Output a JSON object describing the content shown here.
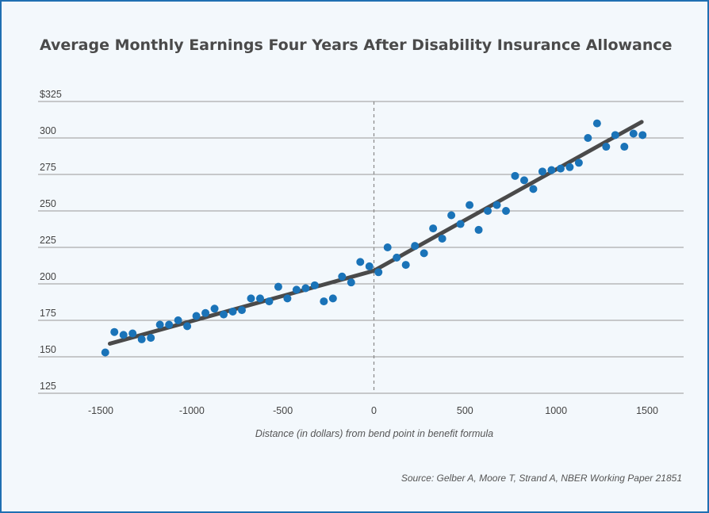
{
  "chart_data": {
    "type": "scatter",
    "title": "Average Monthly Earnings Four Years After Disability Insurance Allowance",
    "xlabel": "Distance (in dollars) from bend point in benefit formula",
    "ylabel": "",
    "source": "Source: Gelber A, Moore T, Strand A, NBER Working Paper 21851",
    "xlim": [
      -1700,
      1700
    ],
    "ylim": [
      120,
      328
    ],
    "x_ticks": [
      -1500,
      -1000,
      -500,
      0,
      500,
      1000,
      1500
    ],
    "x_tick_labels": [
      "-1500",
      "-1000",
      "-500",
      "0",
      "500",
      "1000",
      "1500"
    ],
    "y_ticks": [
      125,
      150,
      175,
      200,
      225,
      250,
      275,
      300,
      325
    ],
    "y_tick_labels": [
      "125",
      "150",
      "175",
      "200",
      "225",
      "250",
      "275",
      "300",
      "$325"
    ],
    "grid": "horizontal",
    "reference_line_x": 0,
    "colors": {
      "points": "#1a73b8",
      "fit": "#4a4a4a",
      "grid": "#999999",
      "border": "#1f6fb2"
    },
    "points": [
      [
        -1475,
        153
      ],
      [
        -1425,
        167
      ],
      [
        -1375,
        165
      ],
      [
        -1325,
        166
      ],
      [
        -1275,
        162
      ],
      [
        -1225,
        163
      ],
      [
        -1175,
        172
      ],
      [
        -1125,
        172
      ],
      [
        -1075,
        175
      ],
      [
        -1025,
        171
      ],
      [
        -975,
        178
      ],
      [
        -925,
        180
      ],
      [
        -875,
        183
      ],
      [
        -825,
        179
      ],
      [
        -775,
        181
      ],
      [
        -725,
        182
      ],
      [
        -675,
        190
      ],
      [
        -625,
        190
      ],
      [
        -575,
        188
      ],
      [
        -525,
        198
      ],
      [
        -475,
        190
      ],
      [
        -425,
        196
      ],
      [
        -375,
        197
      ],
      [
        -325,
        199
      ],
      [
        -275,
        188
      ],
      [
        -225,
        190
      ],
      [
        -175,
        205
      ],
      [
        -125,
        201
      ],
      [
        -75,
        215
      ],
      [
        -25,
        212
      ],
      [
        25,
        208
      ],
      [
        75,
        225
      ],
      [
        125,
        218
      ],
      [
        175,
        213
      ],
      [
        225,
        226
      ],
      [
        275,
        221
      ],
      [
        325,
        238
      ],
      [
        375,
        231
      ],
      [
        425,
        247
      ],
      [
        475,
        241
      ],
      [
        525,
        254
      ],
      [
        575,
        237
      ],
      [
        625,
        250
      ],
      [
        675,
        254
      ],
      [
        725,
        250
      ],
      [
        775,
        274
      ],
      [
        825,
        271
      ],
      [
        875,
        265
      ],
      [
        925,
        277
      ],
      [
        975,
        278
      ],
      [
        1025,
        279
      ],
      [
        1075,
        280
      ],
      [
        1125,
        283
      ],
      [
        1175,
        300
      ],
      [
        1225,
        310
      ],
      [
        1275,
        294
      ],
      [
        1325,
        302
      ],
      [
        1375,
        294
      ],
      [
        1425,
        303
      ],
      [
        1475,
        302
      ]
    ],
    "fit_lines": [
      {
        "x": [
          -1450,
          0
        ],
        "y": [
          159,
          209
        ]
      },
      {
        "x": [
          0,
          1470
        ],
        "y": [
          209,
          311
        ]
      }
    ]
  }
}
